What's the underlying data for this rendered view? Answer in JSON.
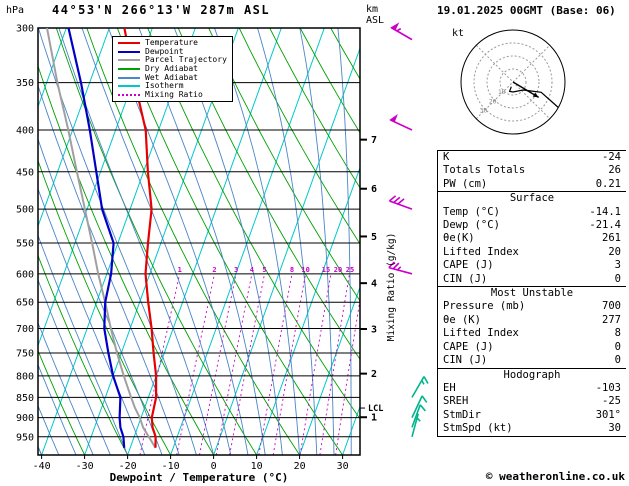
{
  "header": {
    "pressure_unit": "hPa",
    "title": "44°53'N 266°13'W 287m ASL",
    "alt_unit_line1": "km",
    "alt_unit_line2": "ASL",
    "datetime": "19.01.2025 00GMT (Base: 06)"
  },
  "legend": [
    {
      "label": "Temperature",
      "color": "#e80000",
      "dashed": false
    },
    {
      "label": "Dewpoint",
      "color": "#0000c8",
      "dashed": false
    },
    {
      "label": "Parcel Trajectory",
      "color": "#a0a0a0",
      "dashed": false
    },
    {
      "label": "Dry Adiabat",
      "color": "#00a000",
      "dashed": false
    },
    {
      "label": "Wet Adiabat",
      "color": "#4a86c8",
      "dashed": false
    },
    {
      "label": "Isotherm",
      "color": "#00c8c8",
      "dashed": false
    },
    {
      "label": "Mixing Ratio",
      "color": "#c800c8",
      "dashed": true
    }
  ],
  "colors": {
    "temperature": "#e80000",
    "dewpoint": "#0000c8",
    "parcel": "#a0a0a0",
    "dry_adiabat": "#00a000",
    "wet_adiabat": "#4a86c8",
    "isotherm": "#00c8c8",
    "mixing_ratio": "#c800c8",
    "barb_upper": "#c800c8",
    "barb_lower": "#00b48c",
    "grid": "#000000"
  },
  "chart_data": {
    "type": "skewt-log-p",
    "xlabel": "Dewpoint / Temperature (°C)",
    "mixing_ratio_axis_label": "Mixing Ratio (g/kg)",
    "pressure_range_hpa": [
      300,
      1000
    ],
    "pressure_ticks": [
      300,
      350,
      400,
      450,
      500,
      550,
      600,
      650,
      700,
      750,
      800,
      850,
      900,
      950
    ],
    "temp_ticks": [
      -40,
      -30,
      -20,
      -10,
      0,
      10,
      20,
      30
    ],
    "km_ticks": [
      1,
      2,
      3,
      4,
      5,
      6,
      7
    ],
    "lcl_label": "LCL",
    "lcl_pressure": 876,
    "mixing_ratio_lines": [
      1,
      2,
      3,
      4,
      5,
      8,
      10,
      15,
      20,
      25
    ],
    "temperature_profile": [
      [
        980,
        -14.1
      ],
      [
        950,
        -15
      ],
      [
        925,
        -16.5
      ],
      [
        900,
        -17.5
      ],
      [
        850,
        -18.2
      ],
      [
        800,
        -20
      ],
      [
        750,
        -22.5
      ],
      [
        700,
        -25
      ],
      [
        650,
        -28
      ],
      [
        600,
        -31
      ],
      [
        550,
        -33
      ],
      [
        500,
        -35
      ],
      [
        450,
        -39
      ],
      [
        400,
        -43
      ],
      [
        350,
        -49.5
      ],
      [
        300,
        -56.5
      ]
    ],
    "dewpoint_profile": [
      [
        980,
        -21.4
      ],
      [
        950,
        -22.5
      ],
      [
        925,
        -24
      ],
      [
        900,
        -25
      ],
      [
        850,
        -26.5
      ],
      [
        800,
        -30
      ],
      [
        750,
        -33
      ],
      [
        700,
        -36
      ],
      [
        650,
        -38
      ],
      [
        600,
        -39
      ],
      [
        550,
        -41
      ],
      [
        500,
        -46.5
      ],
      [
        450,
        -51
      ],
      [
        400,
        -56
      ],
      [
        350,
        -62
      ],
      [
        300,
        -69.5
      ]
    ],
    "parcel_profile": [
      [
        980,
        -14.1
      ],
      [
        950,
        -16.6
      ],
      [
        925,
        -18.7
      ],
      [
        900,
        -20.3
      ],
      [
        876,
        -22.2
      ],
      [
        850,
        -24
      ],
      [
        800,
        -27.5
      ],
      [
        750,
        -31
      ],
      [
        700,
        -34.5
      ],
      [
        650,
        -38
      ],
      [
        600,
        -42
      ],
      [
        550,
        -46
      ],
      [
        500,
        -50.5
      ],
      [
        450,
        -55.5
      ],
      [
        400,
        -61
      ],
      [
        350,
        -67.5
      ],
      [
        300,
        -74.5
      ]
    ],
    "wind_barbs": [
      {
        "p": 310,
        "spd": 55,
        "dir": 300
      },
      {
        "p": 400,
        "spd": 50,
        "dir": 295
      },
      {
        "p": 500,
        "spd": 30,
        "dir": 290
      },
      {
        "p": 600,
        "spd": 25,
        "dir": 285
      },
      {
        "p": 850,
        "spd": 15,
        "dir": 30
      },
      {
        "p": 900,
        "spd": 10,
        "dir": 25
      },
      {
        "p": 925,
        "spd": 10,
        "dir": 20
      },
      {
        "p": 950,
        "spd": 5,
        "dir": 15
      }
    ]
  },
  "hodograph": {
    "unit_label": "kt",
    "rings_kt": [
      10,
      20,
      30,
      40
    ],
    "ring_labels": [
      "10",
      "20",
      "30"
    ],
    "trace_uv": [
      [
        -1.7,
        -4.7
      ],
      [
        -3.4,
        -9.4
      ],
      [
        0,
        -10
      ],
      [
        10,
        -8
      ],
      [
        18,
        -9
      ],
      [
        28.2,
        -10.3
      ],
      [
        38,
        -19
      ],
      [
        47.6,
        -27.5
      ]
    ],
    "storm_uv": [
      25.7,
      -15.4
    ],
    "storm_dir": "301°",
    "storm_speed_kt": 30
  },
  "stats": {
    "rows_top": [
      [
        "K",
        "-24"
      ],
      [
        "Totals Totals",
        "26"
      ],
      [
        "PW (cm)",
        "0.21"
      ]
    ],
    "sections": [
      {
        "title": "Surface",
        "rows": [
          [
            "Temp (°C)",
            "-14.1"
          ],
          [
            "Dewp (°C)",
            "-21.4"
          ],
          [
            "θe(K)",
            "261"
          ],
          [
            "Lifted Index",
            "20"
          ],
          [
            "CAPE (J)",
            "3"
          ],
          [
            "CIN (J)",
            "0"
          ]
        ]
      },
      {
        "title": "Most Unstable",
        "rows": [
          [
            "Pressure (mb)",
            "700"
          ],
          [
            "θe (K)",
            "277"
          ],
          [
            "Lifted Index",
            "8"
          ],
          [
            "CAPE (J)",
            "0"
          ],
          [
            "CIN (J)",
            "0"
          ]
        ]
      },
      {
        "title": "Hodograph",
        "rows": [
          [
            "EH",
            "-103"
          ],
          [
            "SREH",
            "-25"
          ],
          [
            "StmDir",
            "301°"
          ],
          [
            "StmSpd (kt)",
            "30"
          ]
        ]
      }
    ]
  },
  "footer": {
    "copyright": "© weatheronline.co.uk"
  }
}
